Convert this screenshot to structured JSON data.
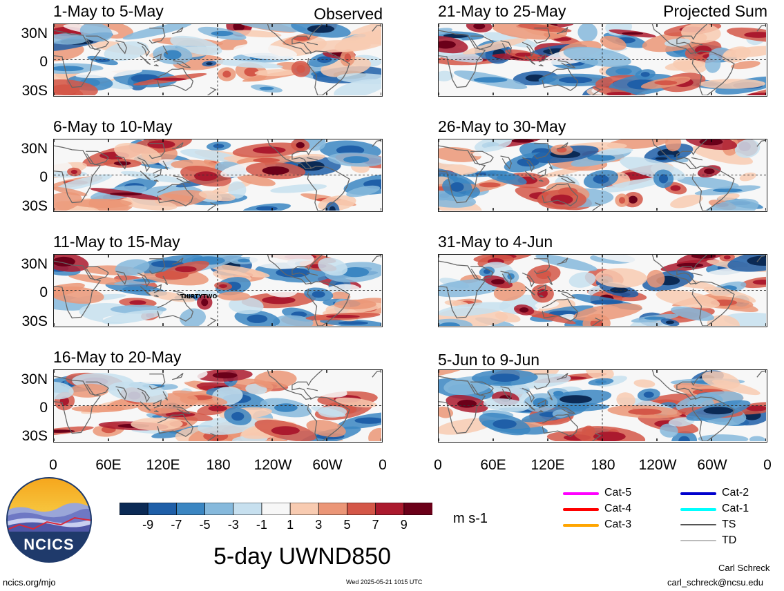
{
  "header": {
    "left_label": "Observed",
    "right_label": "Projected Sum"
  },
  "panels_left": [
    {
      "title": "1-May to 5-May"
    },
    {
      "title": "6-May to 10-May"
    },
    {
      "title": "11-May to 15-May",
      "storm_label": "THIRTYTWO"
    },
    {
      "title": "16-May to 20-May"
    }
  ],
  "panels_right": [
    {
      "title": "21-May to 25-May"
    },
    {
      "title": "26-May to 30-May"
    },
    {
      "title": "31-May to 4-Jun"
    },
    {
      "title": "5-Jun to 9-Jun"
    }
  ],
  "lat_labels": [
    "30N",
    "0",
    "30S"
  ],
  "lon_labels": [
    "0",
    "60E",
    "120E",
    "180",
    "120W",
    "60W",
    "0"
  ],
  "colorbar": {
    "ticks": [
      "-9",
      "-7",
      "-5",
      "-3",
      "-1",
      "1",
      "3",
      "5",
      "7",
      "9"
    ],
    "colors": [
      "#0b2a55",
      "#1f5fa8",
      "#3b86c2",
      "#86b9dc",
      "#c7e0ef",
      "#f7f7f7",
      "#f8cbb1",
      "#eb9677",
      "#d45748",
      "#ab1a2e",
      "#6b0019"
    ],
    "units": "m s-1"
  },
  "track_legend": [
    {
      "label": "Cat-5",
      "color": "#ff00ff"
    },
    {
      "label": "Cat-4",
      "color": "#ff0000"
    },
    {
      "label": "Cat-3",
      "color": "#ffa500"
    },
    {
      "label": "Cat-2",
      "color": "#0000cd"
    },
    {
      "label": "Cat-1",
      "color": "#00ffff"
    },
    {
      "label": "TS",
      "color": "#555555"
    },
    {
      "label": "TD",
      "color": "#bbbbbb"
    }
  ],
  "logo": {
    "text": "NCICS"
  },
  "main_title": "5-day UWND850",
  "footer": {
    "url": "ncics.org/mjo",
    "timestamp": "Wed 2025-05-21 1015 UTC",
    "author": "Carl Schreck",
    "email": "carl_schreck@ncsu.edu"
  }
}
